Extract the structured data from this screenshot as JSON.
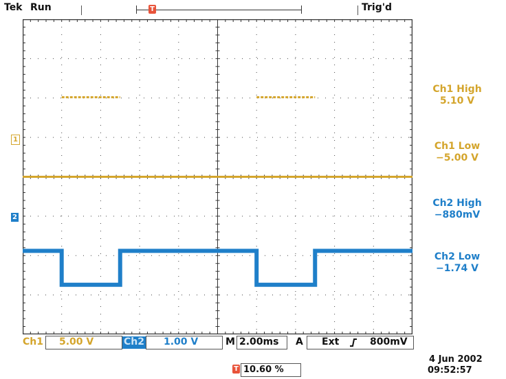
{
  "status": {
    "brand": "Tek",
    "run_state": "Run",
    "trigger_status": "Trig'd"
  },
  "markers": {
    "trigger_marker": "T",
    "ch1_marker": "1",
    "ch2_marker": "2"
  },
  "measurements": [
    {
      "label": "Ch1 High",
      "value": "5.10 V",
      "channel": "ch1"
    },
    {
      "label": "Ch1 Low",
      "value": "−5.00 V",
      "channel": "ch1"
    },
    {
      "label": "Ch2 High",
      "value": "−880mV",
      "channel": "ch2"
    },
    {
      "label": "Ch2 Low",
      "value": "−1.74 V",
      "channel": "ch2"
    }
  ],
  "bottom": {
    "ch1_label": "Ch1",
    "ch1_scale": "5.00 V",
    "ch2_label": "Ch2",
    "ch2_scale": "1.00 V",
    "timebase_label": "M",
    "timebase": "2.00ms",
    "trigger_mode": "A",
    "trigger_source": "Ext",
    "trigger_slope_icon": "rising-edge-icon",
    "trigger_level": "800mV",
    "trigger_position": "10.60 %",
    "date": "4 Jun  2002",
    "time": "09:52:57"
  },
  "colors": {
    "ch1": "#d4a52c",
    "ch2": "#1f7fc9",
    "trigger": "#e8533a",
    "grid": "#444444"
  },
  "waveforms": {
    "ch1": {
      "high_v": 5.1,
      "low_v": -5.0,
      "volts_per_div": 5.0,
      "high_segments_ms": [
        [
          2.0,
          5.0
        ],
        [
          12.0,
          15.0
        ]
      ]
    },
    "ch2": {
      "high_v": -0.88,
      "low_v": -1.74,
      "volts_per_div": 1.0,
      "low_segments_ms": [
        [
          2.0,
          5.0
        ],
        [
          12.0,
          15.0
        ]
      ]
    }
  }
}
